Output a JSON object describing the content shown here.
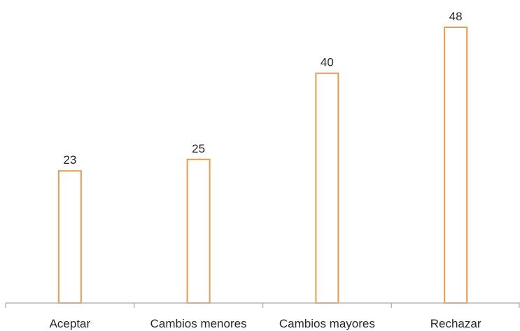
{
  "chart_data": {
    "type": "bar",
    "categories": [
      "Aceptar",
      "Cambios menores",
      "Cambios mayores",
      "Rechazar"
    ],
    "values": [
      23,
      25,
      40,
      48
    ],
    "title": "",
    "xlabel": "",
    "ylabel": "",
    "ylim": [
      0,
      48
    ],
    "grid": false,
    "legend": "none",
    "data_labels": true,
    "bar_outline_color": "#ED9A4C",
    "bar_fill_color": "#FFFFFF",
    "axis_color": "#B7B7B7"
  }
}
